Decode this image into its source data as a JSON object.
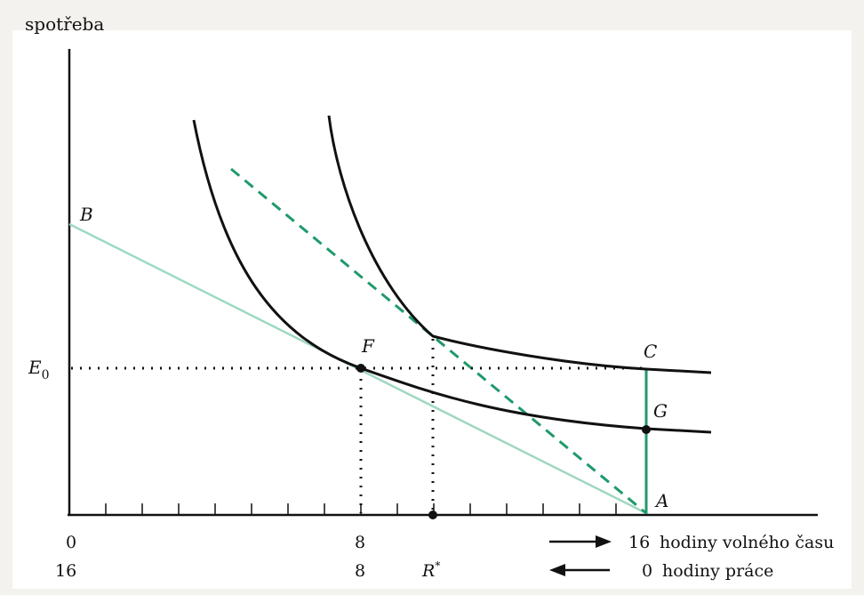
{
  "y_axis_label": "spotřeba",
  "points": {
    "B": "B",
    "F": "F",
    "C": "C",
    "G": "G",
    "A": "A"
  },
  "e0": {
    "main": "E",
    "sub": "0"
  },
  "leisure_row": {
    "zero": "0",
    "eight": "8",
    "sixteen": "16",
    "text": "hodiny volného času"
  },
  "work_row": {
    "sixteen": "16",
    "eight": "8",
    "r_main": "R",
    "r_sup": "*",
    "zero": "0",
    "text": "hodiny práce"
  },
  "colors": {
    "curve": "#111111",
    "budget_line": "#9fd8c0",
    "green": "#1f9a6a",
    "dotted": "#111111"
  }
}
